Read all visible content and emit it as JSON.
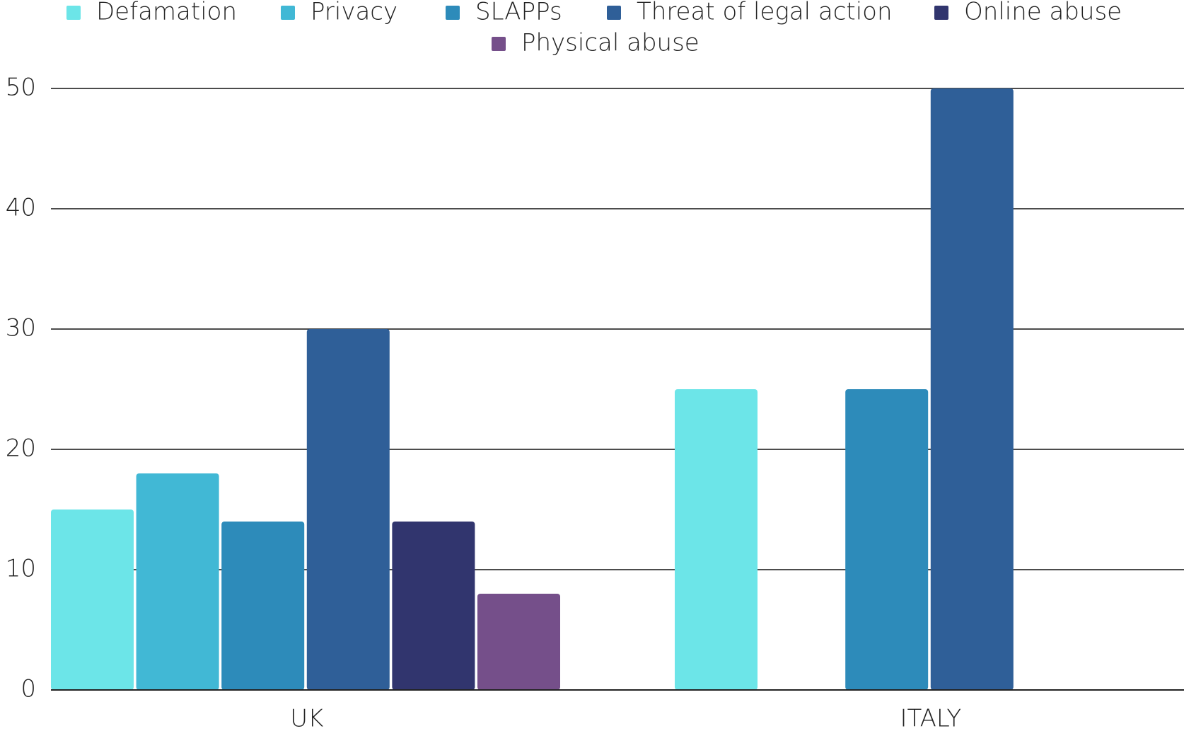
{
  "chart_data": {
    "type": "bar",
    "categories": [
      "UK",
      "ITALY"
    ],
    "series": [
      {
        "name": "Defamation",
        "color": "#6ce5e8",
        "values": [
          15,
          25
        ]
      },
      {
        "name": "Privacy",
        "color": "#41b8d5",
        "values": [
          18,
          null
        ]
      },
      {
        "name": "SLAPPs",
        "color": "#2d8bba",
        "values": [
          14,
          25
        ]
      },
      {
        "name": "Threat of legal action",
        "color": "#2f5f98",
        "values": [
          30,
          50
        ]
      },
      {
        "name": "Online abuse",
        "color": "#31356e",
        "values": [
          14,
          null
        ]
      },
      {
        "name": "Physical abuse",
        "color": "#754f8a",
        "values": [
          8,
          null
        ]
      }
    ],
    "ylim": [
      0,
      50
    ],
    "yticks": [
      0,
      10,
      20,
      30,
      40,
      50
    ],
    "grid": true,
    "legend": "top"
  }
}
